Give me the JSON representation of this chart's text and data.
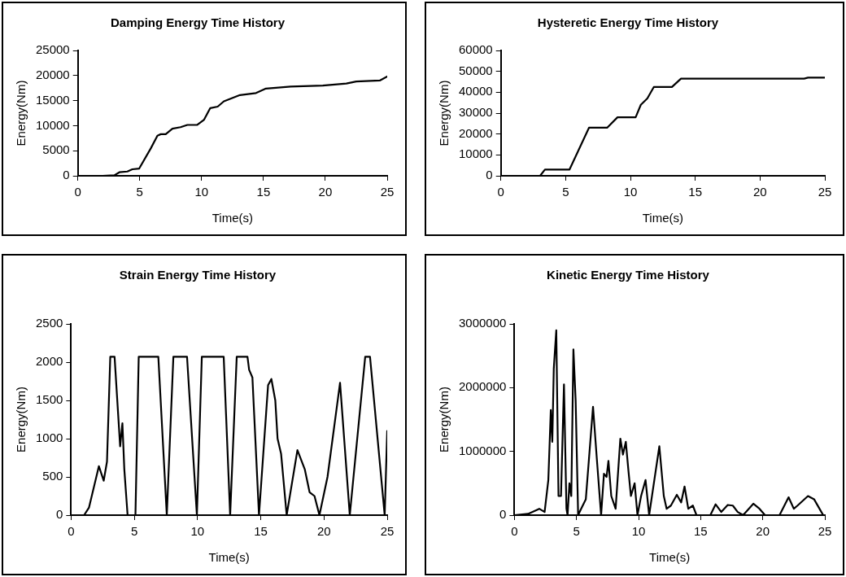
{
  "chart_data": [
    {
      "type": "line",
      "title": "Damping Energy Time History",
      "xlabel": "Time(s)",
      "ylabel": "Energy(Nm)",
      "grid": false,
      "legend": false,
      "marker": "none",
      "xlim": [
        0,
        25
      ],
      "xticks": [
        0,
        5,
        10,
        15,
        20,
        25
      ],
      "ylim": [
        0,
        25000
      ],
      "yticks": [
        0,
        5000,
        10000,
        15000,
        20000,
        25000
      ],
      "x": [
        0,
        2,
        2.95,
        3.35,
        4,
        4.4,
        4.96,
        5.9,
        6.43,
        6.7,
        7.1,
        7.64,
        8.3,
        8.85,
        9.65,
        10.2,
        10.7,
        11.3,
        11.8,
        13.1,
        14.4,
        15.2,
        17.2,
        19.8,
        21.7,
        22.5,
        24.4,
        25
      ],
      "series": [
        {
          "color": "#000000",
          "values": [
            0,
            0,
            100,
            700,
            850,
            1300,
            1450,
            5500,
            8000,
            8300,
            8300,
            9400,
            9700,
            10150,
            10150,
            11200,
            13500,
            13800,
            14850,
            16100,
            16500,
            17400,
            17800,
            18000,
            18400,
            18800,
            19000,
            19800
          ]
        }
      ]
    },
    {
      "type": "line",
      "title": "Hysteretic Energy Time History",
      "xlabel": "Time(s)",
      "ylabel": "Energy(Nm)",
      "grid": false,
      "legend": false,
      "marker": "none",
      "xlim": [
        0,
        25
      ],
      "xticks": [
        0,
        5,
        10,
        15,
        20,
        25
      ],
      "ylim": [
        0,
        60000
      ],
      "yticks": [
        0,
        10000,
        20000,
        30000,
        40000,
        50000,
        60000
      ],
      "x": [
        0,
        3.03,
        3.4,
        5.3,
        6.8,
        8.2,
        9.0,
        10.4,
        10.8,
        11.3,
        11.8,
        13.2,
        13.9,
        23.4,
        23.7,
        25
      ],
      "series": [
        {
          "color": "#000000",
          "values": [
            0,
            0,
            3000,
            3000,
            23000,
            23000,
            28000,
            28000,
            34000,
            37000,
            42500,
            42500,
            46500,
            46500,
            47000,
            47000
          ]
        }
      ]
    },
    {
      "type": "line",
      "title": "Strain Energy Time History",
      "xlabel": "Time(s)",
      "ylabel": "Energy(Nm)",
      "grid": false,
      "legend": false,
      "marker": "none",
      "xlim": [
        0,
        25
      ],
      "xticks": [
        0,
        5,
        10,
        15,
        20,
        25
      ],
      "ylim": [
        0,
        2500
      ],
      "yticks": [
        0,
        500,
        1000,
        1500,
        2000,
        2500
      ],
      "x": [
        0,
        1.03,
        1.42,
        2.07,
        2.2,
        2.58,
        2.84,
        3.1,
        3.44,
        3.88,
        4.06,
        4.21,
        4.47,
        5.09,
        5.35,
        6.9,
        7.57,
        8.09,
        9.17,
        9.95,
        10.34,
        12.07,
        12.58,
        13.1,
        13.95,
        14.08,
        14.34,
        14.86,
        15.58,
        15.84,
        16.15,
        16.33,
        16.61,
        17.05,
        17.9,
        18.48,
        18.86,
        19.25,
        19.64,
        20.28,
        21.27,
        22.04,
        23.26,
        23.64,
        24.8,
        25
      ],
      "series": [
        {
          "color": "#000000",
          "values": [
            0,
            0,
            100,
            550,
            640,
            450,
            700,
            2070,
            2070,
            900,
            1200,
            600,
            0,
            0,
            2070,
            2070,
            0,
            2070,
            2070,
            0,
            2070,
            2070,
            0,
            2070,
            2070,
            1900,
            1800,
            0,
            1700,
            1780,
            1500,
            1000,
            800,
            0,
            850,
            600,
            300,
            250,
            0,
            500,
            1730,
            0,
            2070,
            2070,
            0,
            1100
          ]
        }
      ]
    },
    {
      "type": "line",
      "title": "Kinetic Energy Time History",
      "xlabel": "Time(s)",
      "ylabel": "Energy(Nm)",
      "grid": false,
      "legend": false,
      "marker": "none",
      "xlim": [
        0,
        25
      ],
      "xticks": [
        0,
        5,
        10,
        15,
        20,
        25
      ],
      "ylim": [
        0,
        3000000
      ],
      "yticks": [
        0,
        1000000,
        2000000,
        3000000
      ],
      "x": [
        0,
        1.1,
        2.0,
        2.43,
        2.73,
        2.93,
        3.05,
        3.17,
        3.37,
        3.55,
        3.75,
        3.99,
        4.19,
        4.28,
        4.43,
        4.58,
        4.75,
        4.93,
        5.13,
        5.37,
        5.75,
        6.33,
        6.63,
        6.98,
        7.21,
        7.42,
        7.57,
        7.8,
        8.15,
        8.53,
        8.74,
        8.97,
        9.18,
        9.38,
        9.68,
        9.91,
        10.2,
        10.56,
        10.85,
        11.67,
        12.03,
        12.26,
        12.6,
        13.08,
        13.43,
        13.7,
        14.0,
        14.37,
        14.66,
        15.78,
        16.2,
        16.66,
        17.18,
        17.59,
        17.98,
        18.42,
        19.24,
        19.74,
        20.18,
        21.35,
        22.08,
        22.5,
        22.8,
        23.64,
        24.13,
        24.57,
        24.87
      ],
      "series": [
        {
          "color": "#000000",
          "values": [
            0,
            20000,
            100000,
            50000,
            550000,
            1650000,
            1150000,
            2300000,
            2900000,
            300000,
            300000,
            2050000,
            100000,
            0,
            500000,
            300000,
            2600000,
            1800000,
            0,
            100000,
            250000,
            1700000,
            900000,
            0,
            650000,
            600000,
            850000,
            300000,
            100000,
            1200000,
            950000,
            1150000,
            700000,
            300000,
            500000,
            0,
            300000,
            550000,
            0,
            1080000,
            300000,
            100000,
            150000,
            320000,
            200000,
            450000,
            100000,
            150000,
            0,
            0,
            170000,
            50000,
            160000,
            150000,
            50000,
            0,
            180000,
            100000,
            0,
            0,
            280000,
            100000,
            150000,
            300000,
            250000,
            100000,
            0
          ]
        }
      ]
    }
  ]
}
